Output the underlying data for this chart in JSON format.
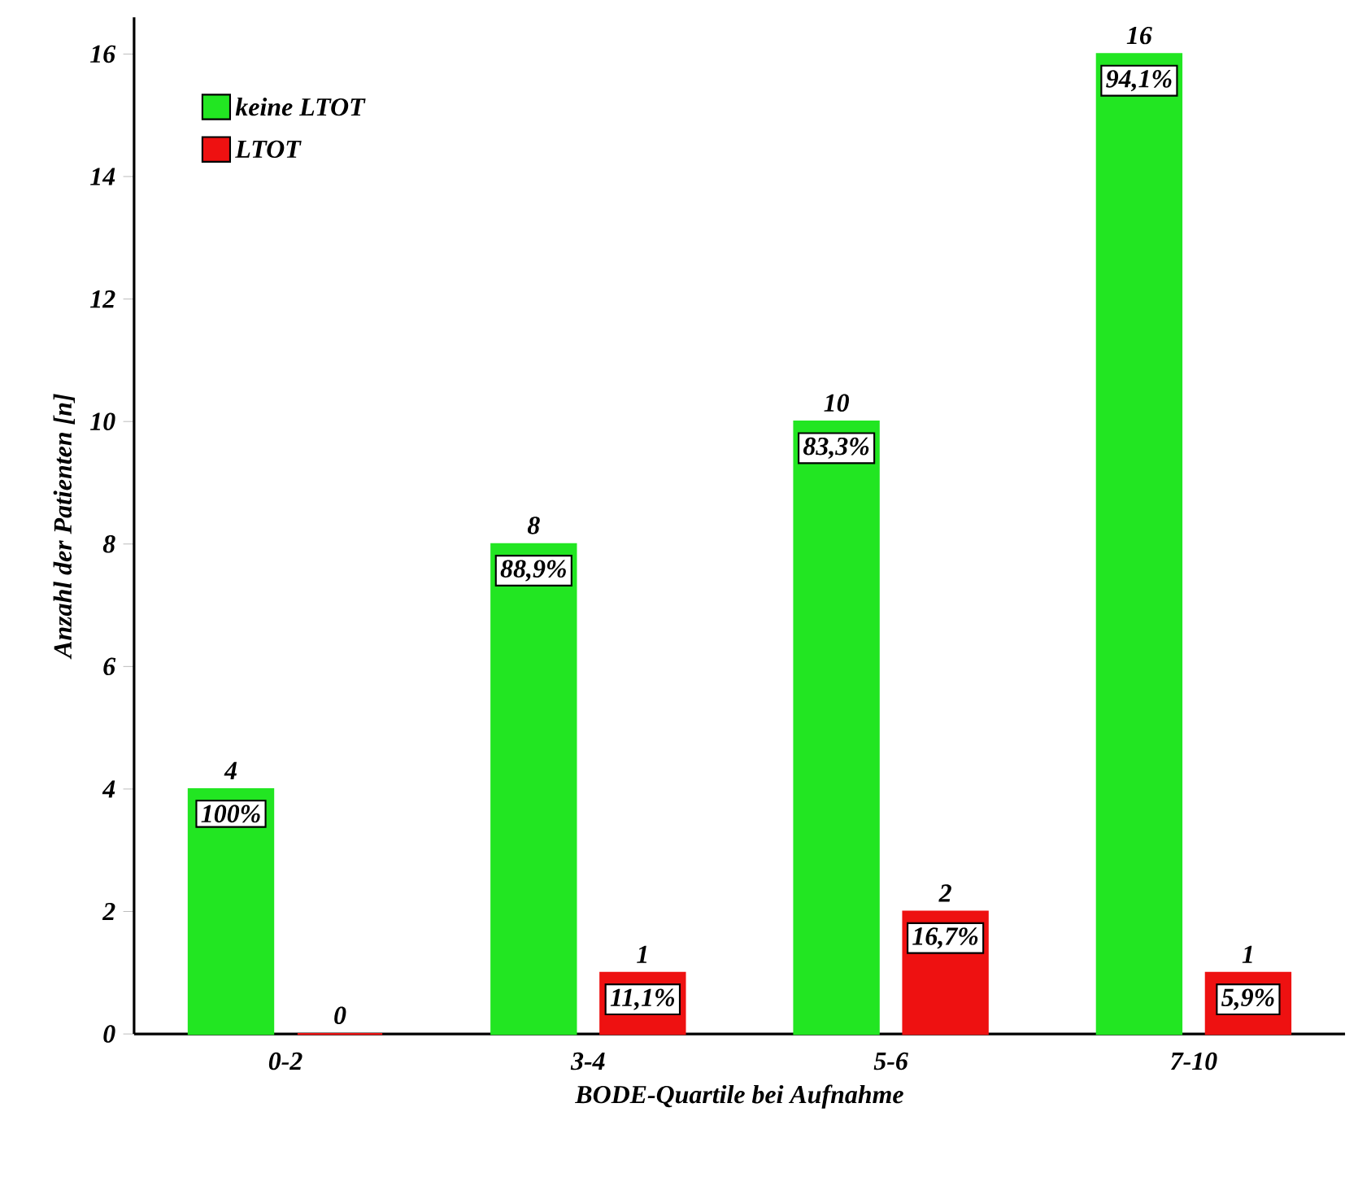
{
  "chart_data": {
    "type": "bar",
    "xlabel": "BODE-Quartile bei Aufnahme",
    "ylabel": "Anzahl der Patienten [n]",
    "categories": [
      "0-2",
      "3-4",
      "5-6",
      "7-10"
    ],
    "series": [
      {
        "name": "keine LTOT",
        "color": "#22e622",
        "values": [
          4,
          8,
          10,
          16
        ],
        "value_labels": [
          "4",
          "8",
          "10",
          "16"
        ]
      },
      {
        "name": "LTOT",
        "color": "#ee1111",
        "values": [
          0,
          1,
          2,
          1
        ],
        "value_labels": [
          "0",
          "1",
          "2",
          "1"
        ]
      }
    ],
    "ylim": [
      0,
      16.6
    ],
    "yticks": [
      0,
      2,
      4,
      6,
      8,
      10,
      12,
      14,
      16
    ],
    "legend": "top left",
    "grid": false,
    "annotations": [
      "100%",
      "88,9%",
      "83,3%",
      "94,1%",
      "11,1%",
      "16,7%",
      "5,9%"
    ]
  }
}
